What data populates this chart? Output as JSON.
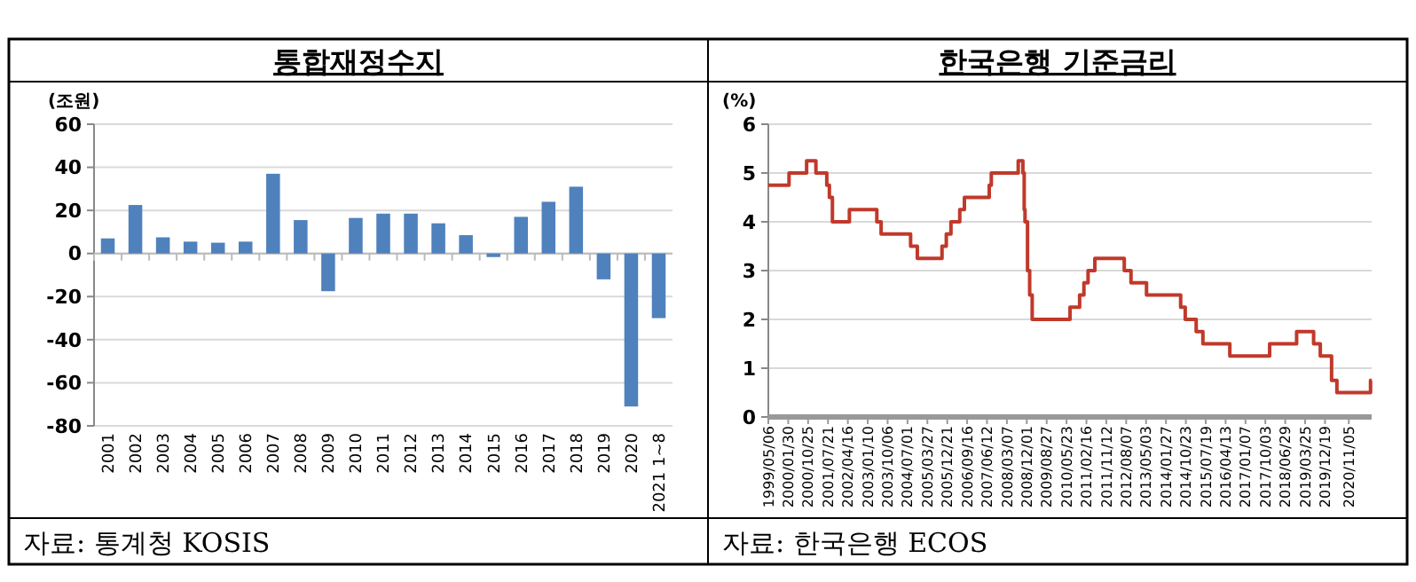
{
  "chart_data": [
    {
      "type": "bar",
      "title": "통합재정수지",
      "ylabel": "(조원)",
      "categories": [
        "2001",
        "2002",
        "2003",
        "2004",
        "2005",
        "2006",
        "2007",
        "2008",
        "2009",
        "2010",
        "2011",
        "2012",
        "2013",
        "2014",
        "2015",
        "2016",
        "2017",
        "2018",
        "2019",
        "2020",
        "2021 1~8"
      ],
      "values": [
        7,
        22.5,
        7.5,
        5.5,
        5,
        5.5,
        37,
        15.5,
        -17.5,
        16.5,
        18.5,
        18.5,
        14,
        8.5,
        -0.5,
        17,
        24,
        31,
        -12,
        -71,
        -30
      ],
      "color": "#4f81bd",
      "ylim": [
        -80,
        60
      ],
      "yticks": [
        -80,
        -60,
        -40,
        -20,
        0,
        20,
        40,
        60
      ],
      "grid": "y",
      "annotations": [
        "자료: 통계청 KOSIS"
      ]
    },
    {
      "type": "step",
      "title": "한국은행 기준금리",
      "ylabel": "(%)",
      "x": [
        "1999-05-06",
        "2000-02-10",
        "2000-10-05",
        "2001-02-08",
        "2001-07-05",
        "2001-08-09",
        "2001-09-19",
        "2002-05-07",
        "2003-05-13",
        "2003-07-10",
        "2004-08-12",
        "2004-11-11",
        "2005-10-11",
        "2005-12-08",
        "2006-02-09",
        "2006-06-08",
        "2006-08-10",
        "2007-07-12",
        "2007-08-09",
        "2008-08-07",
        "2008-10-09",
        "2008-10-27",
        "2008-11-07",
        "2008-12-11",
        "2009-01-09",
        "2009-02-12",
        "2010-07-09",
        "2010-11-16",
        "2011-01-13",
        "2011-03-10",
        "2011-06-10",
        "2012-07-12",
        "2012-10-11",
        "2013-05-09",
        "2014-08-14",
        "2014-10-15",
        "2015-03-12",
        "2015-06-11",
        "2016-06-09",
        "2017-11-30",
        "2018-11-30",
        "2019-07-18",
        "2019-10-16",
        "2020-03-17",
        "2020-05-28",
        "2021-08-26",
        "2021-09-10"
      ],
      "values": [
        4.75,
        5,
        5.25,
        5,
        4.75,
        4.5,
        4,
        4.25,
        4,
        3.75,
        3.5,
        3.25,
        3.5,
        3.75,
        4,
        4.25,
        4.5,
        4.75,
        5,
        5.25,
        5,
        4.25,
        4,
        3,
        2.5,
        2,
        2.25,
        2.5,
        2.75,
        3,
        3.25,
        3,
        2.75,
        2.5,
        2.25,
        2,
        1.75,
        1.5,
        1.25,
        1.5,
        1.75,
        1.5,
        1.25,
        0.75,
        0.5,
        0.75,
        0.75
      ],
      "color": "#c0392b",
      "xlim": [
        "1999-05-06",
        "2021-09-10"
      ],
      "xticks": [
        {
          "value": "1999-05-06",
          "label": "1999/05/06"
        },
        {
          "value": "2000-01-30",
          "label": "2000/01/30"
        },
        {
          "value": "2000-10-25",
          "label": "2000/10/25"
        },
        {
          "value": "2001-07-21",
          "label": "2001/07/21"
        },
        {
          "value": "2002-04-16",
          "label": "2002/04/16"
        },
        {
          "value": "2003-01-10",
          "label": "2003/01/10"
        },
        {
          "value": "2003-10-06",
          "label": "2003/10/06"
        },
        {
          "value": "2004-07-01",
          "label": "2004/07/01"
        },
        {
          "value": "2005-03-27",
          "label": "2005/03/27"
        },
        {
          "value": "2005-12-21",
          "label": "2005/12/21"
        },
        {
          "value": "2006-09-16",
          "label": "2006/09/16"
        },
        {
          "value": "2007-06-12",
          "label": "2007/06/12"
        },
        {
          "value": "2008-03-07",
          "label": "2008/03/07"
        },
        {
          "value": "2008-12-01",
          "label": "2008/12/01"
        },
        {
          "value": "2009-08-27",
          "label": "2009/08/27"
        },
        {
          "value": "2010-05-23",
          "label": "2010/05/23"
        },
        {
          "value": "2011-02-16",
          "label": "2011/02/16"
        },
        {
          "value": "2011-11-12",
          "label": "2011/11/12"
        },
        {
          "value": "2012-08-07",
          "label": "2012/08/07"
        },
        {
          "value": "2013-05-03",
          "label": "2013/05/03"
        },
        {
          "value": "2014-01-27",
          "label": "2014/01/27"
        },
        {
          "value": "2014-10-23",
          "label": "2014/10/23"
        },
        {
          "value": "2015-07-19",
          "label": "2015/07/19"
        },
        {
          "value": "2016-04-13",
          "label": "2016/04/13"
        },
        {
          "value": "2017-01-07",
          "label": "2017/01/07"
        },
        {
          "value": "2017-10-03",
          "label": "2017/10/03"
        },
        {
          "value": "2018-06-29",
          "label": "2018/06/29"
        },
        {
          "value": "2019-03-25",
          "label": "2019/03/25"
        },
        {
          "value": "2019-12-19",
          "label": "2019/12/19"
        },
        {
          "value": "2020-11-05",
          "label": "2020/11/05"
        }
      ],
      "ylim": [
        0,
        6
      ],
      "yticks": [
        0,
        1,
        2,
        3,
        4,
        5,
        6
      ],
      "grid": "y",
      "annotations": [
        "자료: 한국은행 ECOS"
      ]
    }
  ]
}
